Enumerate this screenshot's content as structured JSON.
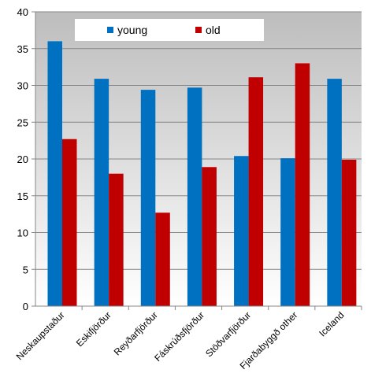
{
  "chart_data": {
    "type": "bar",
    "title": "",
    "xlabel": "",
    "ylabel": "",
    "categories": [
      "Neskaupstaður",
      "Eskifjörður",
      "Reyðarfjörður",
      "Fáskrúðsfjörður",
      "Stöðvarfjörður",
      "Fjarðabyggð other",
      "Iceland"
    ],
    "series": [
      {
        "name": "young",
        "color": "#0070C0",
        "values": [
          36,
          30.9,
          29.4,
          29.7,
          20.4,
          20.1,
          30.9
        ]
      },
      {
        "name": "old",
        "color": "#C00000",
        "values": [
          22.7,
          18,
          12.7,
          18.9,
          31.1,
          33,
          19.9
        ]
      }
    ],
    "ylim": [
      0,
      40
    ],
    "yticks": [
      "0",
      "5",
      "10",
      "15",
      "20",
      "25",
      "30",
      "35",
      "40"
    ],
    "grid": true,
    "legend": "top-left"
  }
}
